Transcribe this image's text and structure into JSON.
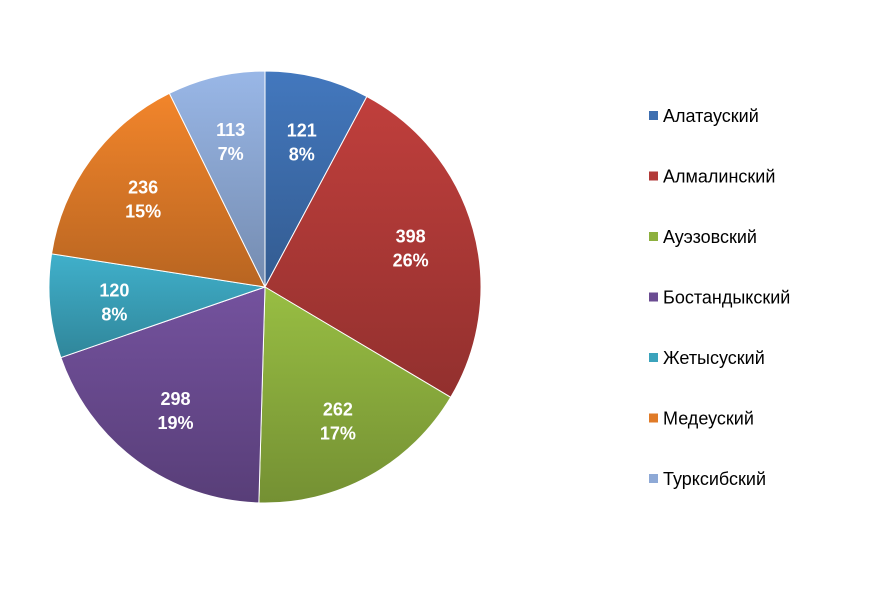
{
  "chart_data": {
    "type": "pie",
    "title": "",
    "legend_position": "right",
    "slices": [
      {
        "label": "Алатауский",
        "value": 121,
        "percent": "8%",
        "color": "#3E6FB0"
      },
      {
        "label": "Алмалинский",
        "value": 398,
        "percent": "26%",
        "color": "#B23A38"
      },
      {
        "label": "Ауэзовский",
        "value": 262,
        "percent": "17%",
        "color": "#8DB03E"
      },
      {
        "label": "Бостандыкский",
        "value": 298,
        "percent": "19%",
        "color": "#6B4C92"
      },
      {
        "label": "Жетысуский",
        "value": 120,
        "percent": "8%",
        "color": "#3BA3BC"
      },
      {
        "label": "Медеуский",
        "value": 236,
        "percent": "15%",
        "color": "#E07B28"
      },
      {
        "label": "Турксибский",
        "value": 113,
        "percent": "7%",
        "color": "#8EA9D6"
      }
    ]
  }
}
